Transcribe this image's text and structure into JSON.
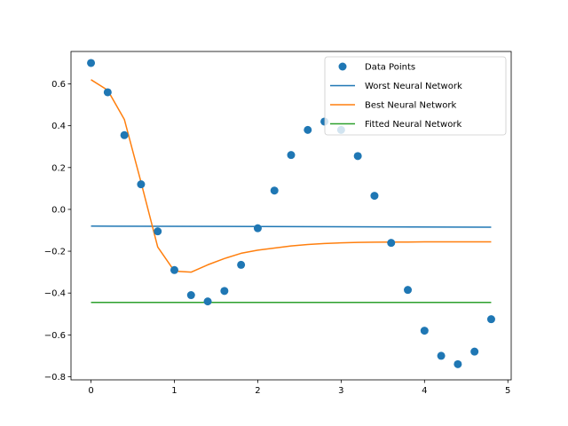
{
  "chart_data": {
    "type": "line",
    "title": "",
    "xlabel": "",
    "ylabel": "",
    "xlim": [
      -0.24,
      5.04
    ],
    "ylim": [
      -0.815,
      0.755
    ],
    "xticks": [
      0,
      1,
      2,
      3,
      4,
      5
    ],
    "yticks": [
      -0.8,
      -0.6,
      -0.4,
      -0.2,
      0.0,
      0.2,
      0.4,
      0.6
    ],
    "xtick_labels": [
      "0",
      "1",
      "2",
      "3",
      "4",
      "5"
    ],
    "ytick_labels": [
      "−0.8",
      "−0.6",
      "−0.4",
      "−0.2",
      "0.0",
      "0.2",
      "0.4",
      "0.6"
    ],
    "grid": false,
    "legend_position": "top-right",
    "series": [
      {
        "name": "Data Points",
        "kind": "scatter",
        "color": "#1f77b4",
        "x": [
          0.0,
          0.2,
          0.4,
          0.6,
          0.8,
          1.0,
          1.2,
          1.4,
          1.6,
          1.8,
          2.0,
          2.2,
          2.4,
          2.6,
          2.8,
          3.0,
          3.2,
          3.4,
          3.6,
          3.8,
          4.0,
          4.2,
          4.4,
          4.6,
          4.8
        ],
        "y": [
          0.7,
          0.56,
          0.355,
          0.12,
          -0.105,
          -0.29,
          -0.41,
          -0.44,
          -0.39,
          -0.265,
          -0.09,
          0.09,
          0.26,
          0.38,
          0.42,
          0.38,
          0.255,
          0.065,
          -0.16,
          -0.385,
          -0.58,
          -0.7,
          -0.74,
          -0.68,
          -0.525
        ]
      },
      {
        "name": "Worst Neural Network",
        "kind": "line",
        "color": "#1f77b4",
        "x": [
          0.0,
          4.8
        ],
        "y": [
          -0.08,
          -0.085
        ]
      },
      {
        "name": "Best Neural Network",
        "kind": "line",
        "color": "#ff7f0e",
        "x": [
          0.0,
          0.2,
          0.4,
          0.6,
          0.8,
          1.0,
          1.2,
          1.4,
          1.6,
          1.8,
          2.0,
          2.2,
          2.4,
          2.6,
          2.8,
          3.0,
          3.2,
          3.4,
          3.6,
          3.8,
          4.0,
          4.2,
          4.4,
          4.6,
          4.8
        ],
        "y": [
          0.62,
          0.57,
          0.43,
          0.13,
          -0.18,
          -0.295,
          -0.3,
          -0.265,
          -0.235,
          -0.21,
          -0.195,
          -0.185,
          -0.175,
          -0.168,
          -0.163,
          -0.16,
          -0.158,
          -0.157,
          -0.156,
          -0.156,
          -0.155,
          -0.155,
          -0.155,
          -0.155,
          -0.155
        ]
      },
      {
        "name": "Fitted Neural Network",
        "kind": "line",
        "color": "#2ca02c",
        "x": [
          0.0,
          4.8
        ],
        "y": [
          -0.445,
          -0.445
        ]
      }
    ]
  }
}
